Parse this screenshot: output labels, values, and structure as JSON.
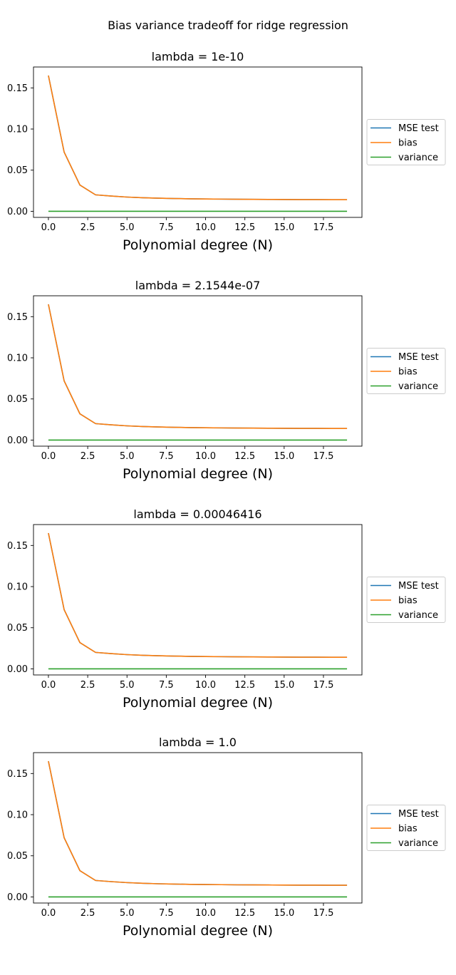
{
  "suptitle": "Bias variance tradeoff for ridge regression",
  "colors": {
    "mse": "#1f77b4",
    "bias": "#ff7f0e",
    "variance": "#2ca02c"
  },
  "chart_data": [
    {
      "type": "line",
      "title": "lambda = 1e-10",
      "xlabel": "Polynomial degree (N)",
      "ylabel": "",
      "xlim": [
        -0.95,
        19.95
      ],
      "ylim": [
        -0.0074,
        0.1754
      ],
      "xticks": [
        0,
        2.5,
        5,
        7.5,
        10,
        12.5,
        15,
        17.5
      ],
      "xtick_labels": [
        "0.0",
        "2.5",
        "5.0",
        "7.5",
        "10.0",
        "12.5",
        "15.0",
        "17.5"
      ],
      "yticks": [
        0,
        0.05,
        0.1,
        0.15
      ],
      "ytick_labels": [
        "0.00",
        "0.05",
        "0.10",
        "0.15"
      ],
      "grid": false,
      "legend": "center-right-outside",
      "x": [
        0,
        1,
        2,
        3,
        4,
        5,
        6,
        7,
        8,
        9,
        10,
        11,
        12,
        13,
        14,
        15,
        16,
        17,
        18,
        19
      ],
      "series": [
        {
          "name": "MSE test",
          "values": [
            0.165,
            0.072,
            0.032,
            0.02,
            0.0185,
            0.0173,
            0.0165,
            0.0159,
            0.0155,
            0.0152,
            0.015,
            0.0148,
            0.0146,
            0.0145,
            0.0144,
            0.0143,
            0.0142,
            0.0142,
            0.0141,
            0.0141
          ]
        },
        {
          "name": "bias",
          "values": [
            0.165,
            0.072,
            0.032,
            0.02,
            0.0185,
            0.0173,
            0.0165,
            0.0159,
            0.0155,
            0.0152,
            0.015,
            0.0148,
            0.0146,
            0.0145,
            0.0144,
            0.0143,
            0.0142,
            0.0142,
            0.0141,
            0.0141
          ]
        },
        {
          "name": "variance",
          "values": [
            0,
            0,
            0,
            0,
            0,
            0,
            0,
            0,
            0,
            0,
            0,
            0,
            0,
            0,
            0,
            0,
            0,
            0,
            0,
            0
          ]
        }
      ]
    },
    {
      "type": "line",
      "title": "lambda = 2.1544e-07",
      "xlabel": "Polynomial degree (N)",
      "ylabel": "",
      "xlim": [
        -0.95,
        19.95
      ],
      "ylim": [
        -0.0074,
        0.1754
      ],
      "xticks": [
        0,
        2.5,
        5,
        7.5,
        10,
        12.5,
        15,
        17.5
      ],
      "xtick_labels": [
        "0.0",
        "2.5",
        "5.0",
        "7.5",
        "10.0",
        "12.5",
        "15.0",
        "17.5"
      ],
      "yticks": [
        0,
        0.05,
        0.1,
        0.15
      ],
      "ytick_labels": [
        "0.00",
        "0.05",
        "0.10",
        "0.15"
      ],
      "grid": false,
      "legend": "center-right-outside",
      "x": [
        0,
        1,
        2,
        3,
        4,
        5,
        6,
        7,
        8,
        9,
        10,
        11,
        12,
        13,
        14,
        15,
        16,
        17,
        18,
        19
      ],
      "series": [
        {
          "name": "MSE test",
          "values": [
            0.165,
            0.072,
            0.032,
            0.02,
            0.0185,
            0.0173,
            0.0165,
            0.0159,
            0.0155,
            0.0152,
            0.015,
            0.0148,
            0.0146,
            0.0145,
            0.0144,
            0.0143,
            0.0142,
            0.0142,
            0.0141,
            0.0141
          ]
        },
        {
          "name": "bias",
          "values": [
            0.165,
            0.072,
            0.032,
            0.02,
            0.0185,
            0.0173,
            0.0165,
            0.0159,
            0.0155,
            0.0152,
            0.015,
            0.0148,
            0.0146,
            0.0145,
            0.0144,
            0.0143,
            0.0142,
            0.0142,
            0.0141,
            0.0141
          ]
        },
        {
          "name": "variance",
          "values": [
            0,
            0,
            0,
            0,
            0,
            0,
            0,
            0,
            0,
            0,
            0,
            0,
            0,
            0,
            0,
            0,
            0,
            0,
            0,
            0
          ]
        }
      ]
    },
    {
      "type": "line",
      "title": "lambda = 0.00046416",
      "xlabel": "Polynomial degree (N)",
      "ylabel": "",
      "xlim": [
        -0.95,
        19.95
      ],
      "ylim": [
        -0.0074,
        0.1754
      ],
      "xticks": [
        0,
        2.5,
        5,
        7.5,
        10,
        12.5,
        15,
        17.5
      ],
      "xtick_labels": [
        "0.0",
        "2.5",
        "5.0",
        "7.5",
        "10.0",
        "12.5",
        "15.0",
        "17.5"
      ],
      "yticks": [
        0,
        0.05,
        0.1,
        0.15
      ],
      "ytick_labels": [
        "0.00",
        "0.05",
        "0.10",
        "0.15"
      ],
      "grid": false,
      "legend": "center-right-outside",
      "x": [
        0,
        1,
        2,
        3,
        4,
        5,
        6,
        7,
        8,
        9,
        10,
        11,
        12,
        13,
        14,
        15,
        16,
        17,
        18,
        19
      ],
      "series": [
        {
          "name": "MSE test",
          "values": [
            0.165,
            0.072,
            0.032,
            0.02,
            0.0185,
            0.0173,
            0.0165,
            0.0159,
            0.0155,
            0.0152,
            0.015,
            0.0148,
            0.0146,
            0.0145,
            0.0144,
            0.0143,
            0.0142,
            0.0142,
            0.0141,
            0.0141
          ]
        },
        {
          "name": "bias",
          "values": [
            0.165,
            0.072,
            0.032,
            0.02,
            0.0185,
            0.0173,
            0.0165,
            0.0159,
            0.0155,
            0.0152,
            0.015,
            0.0148,
            0.0146,
            0.0145,
            0.0144,
            0.0143,
            0.0142,
            0.0142,
            0.0141,
            0.0141
          ]
        },
        {
          "name": "variance",
          "values": [
            0,
            0,
            0,
            0,
            0,
            0,
            0,
            0,
            0,
            0,
            0,
            0,
            0,
            0,
            0,
            0,
            0,
            0,
            0,
            0
          ]
        }
      ]
    },
    {
      "type": "line",
      "title": "lambda = 1.0",
      "xlabel": "Polynomial degree (N)",
      "ylabel": "",
      "xlim": [
        -0.95,
        19.95
      ],
      "ylim": [
        -0.0074,
        0.1754
      ],
      "xticks": [
        0,
        2.5,
        5,
        7.5,
        10,
        12.5,
        15,
        17.5
      ],
      "xtick_labels": [
        "0.0",
        "2.5",
        "5.0",
        "7.5",
        "10.0",
        "12.5",
        "15.0",
        "17.5"
      ],
      "yticks": [
        0,
        0.05,
        0.1,
        0.15
      ],
      "ytick_labels": [
        "0.00",
        "0.05",
        "0.10",
        "0.15"
      ],
      "grid": false,
      "legend": "center-right-outside",
      "x": [
        0,
        1,
        2,
        3,
        4,
        5,
        6,
        7,
        8,
        9,
        10,
        11,
        12,
        13,
        14,
        15,
        16,
        17,
        18,
        19
      ],
      "series": [
        {
          "name": "MSE test",
          "values": [
            0.165,
            0.072,
            0.032,
            0.02,
            0.0186,
            0.0174,
            0.0166,
            0.016,
            0.0156,
            0.0153,
            0.0151,
            0.0149,
            0.0147,
            0.0146,
            0.0145,
            0.0144,
            0.0143,
            0.0143,
            0.0142,
            0.0142
          ]
        },
        {
          "name": "bias",
          "values": [
            0.165,
            0.072,
            0.032,
            0.02,
            0.0186,
            0.0174,
            0.0166,
            0.016,
            0.0156,
            0.0153,
            0.0151,
            0.0149,
            0.0147,
            0.0146,
            0.0145,
            0.0144,
            0.0143,
            0.0143,
            0.0142,
            0.0142
          ]
        },
        {
          "name": "variance",
          "values": [
            0,
            0,
            0,
            0,
            0,
            0,
            0,
            0,
            0,
            0,
            0,
            0,
            0,
            0,
            0,
            0,
            0,
            0,
            0,
            0
          ]
        }
      ]
    }
  ]
}
